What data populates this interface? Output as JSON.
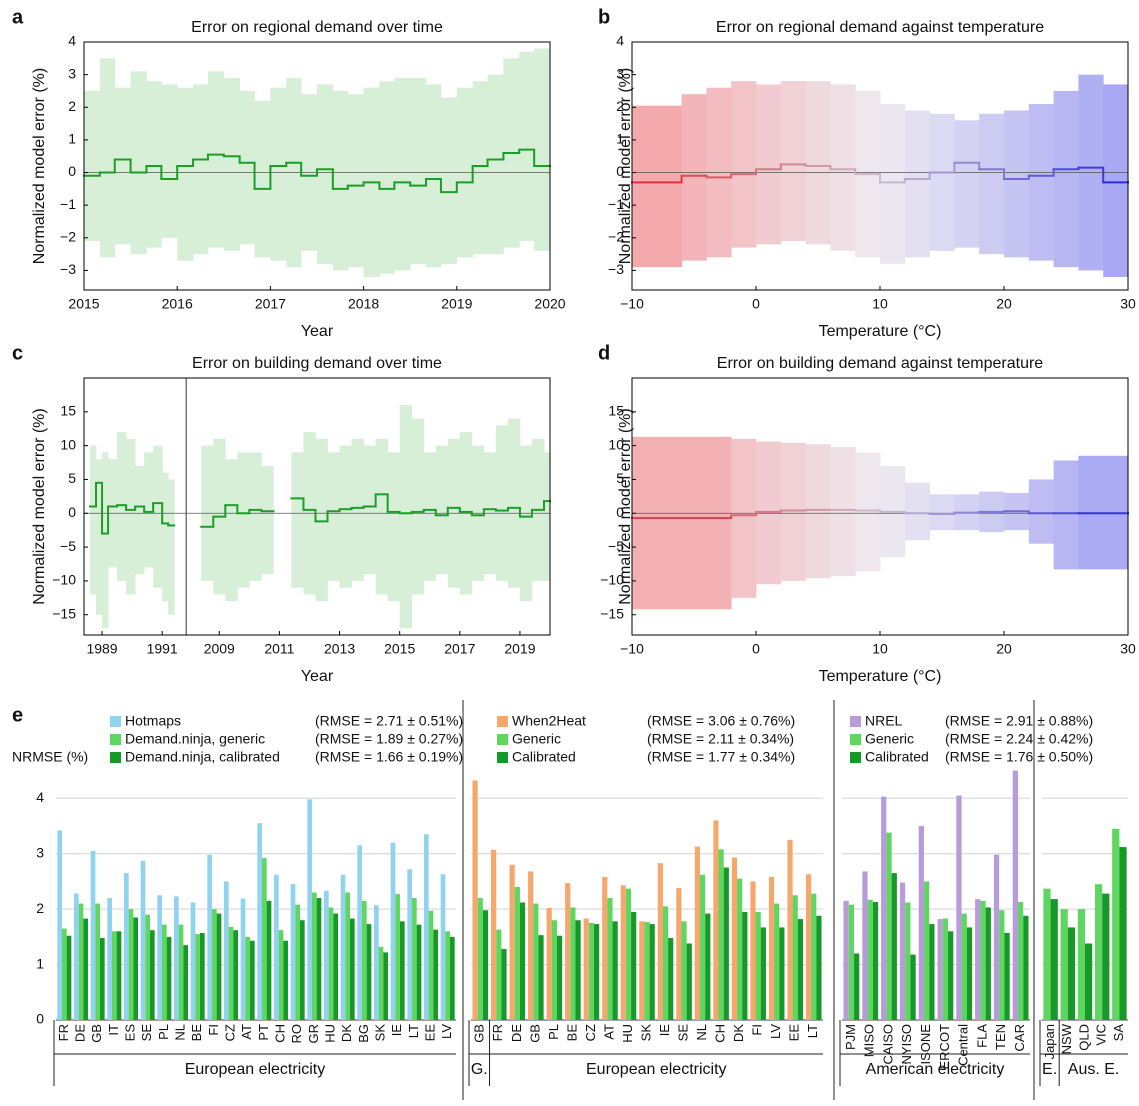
{
  "chart_data": [
    {
      "type": "step-band",
      "panel": "a",
      "title": "Error on regional demand over time",
      "xlabel": "Year",
      "ylabel": "Normalized model error (%)",
      "xlim": [
        2015,
        2020
      ],
      "xticks": [
        2015,
        2016,
        2017,
        2018,
        2019,
        2020
      ],
      "ylim": [
        -3.6,
        4
      ],
      "yticks": [
        {
          "value": -3,
          "label": "−3"
        },
        {
          "value": -2,
          "label": "−2"
        },
        {
          "value": -1,
          "label": "−1"
        },
        0,
        1,
        2,
        3,
        4
      ],
      "zero_line": true,
      "line_color": "#1e9e28",
      "band_color": "#d6efd6",
      "x": [
        2015,
        2015.17,
        2015.33,
        2015.5,
        2015.67,
        2015.83,
        2016,
        2016.17,
        2016.33,
        2016.5,
        2016.67,
        2016.83,
        2017,
        2017.17,
        2017.33,
        2017.5,
        2017.67,
        2017.83,
        2018,
        2018.17,
        2018.33,
        2018.5,
        2018.67,
        2018.83,
        2019,
        2019.17,
        2019.33,
        2019.5,
        2019.67,
        2019.83
      ],
      "line": [
        -0.1,
        0.0,
        0.4,
        0.0,
        0.2,
        -0.2,
        0.2,
        0.4,
        0.55,
        0.5,
        0.3,
        -0.5,
        0.2,
        0.3,
        -0.1,
        0.1,
        -0.5,
        -0.4,
        -0.3,
        -0.5,
        -0.3,
        -0.4,
        -0.2,
        -0.6,
        -0.3,
        0.2,
        0.4,
        0.6,
        0.7,
        0.2
      ],
      "upper": [
        2.5,
        3.5,
        2.6,
        3.1,
        2.8,
        2.7,
        2.6,
        2.7,
        3.1,
        2.9,
        2.5,
        2.2,
        2.6,
        2.9,
        2.4,
        2.7,
        2.5,
        2.4,
        2.6,
        2.8,
        2.9,
        2.9,
        2.7,
        2.3,
        2.6,
        2.8,
        3.0,
        3.5,
        3.7,
        3.8
      ],
      "lower": [
        -2.1,
        -2.6,
        -2.2,
        -2.5,
        -2.3,
        -2.0,
        -2.7,
        -2.5,
        -2.3,
        -2.4,
        -2.2,
        -2.6,
        -2.7,
        -2.9,
        -2.4,
        -2.8,
        -3.0,
        -2.9,
        -3.2,
        -3.1,
        -3.0,
        -2.8,
        -2.9,
        -2.8,
        -2.6,
        -2.5,
        -2.5,
        -2.3,
        -2.1,
        -2.4
      ]
    },
    {
      "type": "step-band",
      "panel": "b",
      "title": "Error on regional demand against temperature",
      "xlabel": "Temperature (°C)",
      "ylabel": "Normalized model error (%)",
      "xlim": [
        -10,
        30
      ],
      "xticks": [
        {
          "value": -10,
          "label": "−10"
        },
        0,
        10,
        20,
        30
      ],
      "ylim": [
        -3.6,
        4
      ],
      "yticks": [
        {
          "value": -3,
          "label": "−3"
        },
        {
          "value": -2,
          "label": "−2"
        },
        {
          "value": -1,
          "label": "−1"
        },
        0,
        1,
        2,
        3,
        4
      ],
      "zero_line": true,
      "line_gradient": [
        "#e0262c",
        "#cbbfd0",
        "#2424dc"
      ],
      "band_gradient": [
        "#f5a3a5",
        "#eeebf1",
        "#a4a4f4"
      ],
      "x": [
        -10,
        -6,
        -4,
        -2,
        0,
        2,
        4,
        6,
        8,
        10,
        12,
        14,
        16,
        18,
        20,
        22,
        24,
        26,
        28
      ],
      "line": [
        -0.3,
        -0.1,
        -0.15,
        -0.05,
        0.1,
        0.25,
        0.2,
        0.1,
        -0.05,
        -0.3,
        -0.2,
        0.0,
        0.3,
        0.1,
        -0.2,
        -0.1,
        0.1,
        0.15,
        -0.3
      ],
      "upper": [
        2.05,
        2.4,
        2.6,
        2.8,
        2.7,
        2.8,
        2.8,
        2.7,
        2.5,
        2.1,
        1.9,
        1.8,
        1.6,
        1.8,
        1.9,
        2.1,
        2.5,
        3.0,
        2.7
      ],
      "lower": [
        -2.9,
        -2.7,
        -2.6,
        -2.3,
        -2.2,
        -2.1,
        -2.2,
        -2.4,
        -2.6,
        -2.8,
        -2.6,
        -2.4,
        -2.3,
        -2.5,
        -2.6,
        -2.7,
        -2.9,
        -3.0,
        -3.2
      ]
    },
    {
      "type": "step-band",
      "panel": "c",
      "title": "Error on building demand over time",
      "xlabel": "Year",
      "ylabel": "Normalized model error (%)",
      "ylim": [
        -18,
        20
      ],
      "yticks": [
        {
          "value": -15,
          "label": "−15"
        },
        {
          "value": -10,
          "label": "−10"
        },
        {
          "value": -5,
          "label": "−5"
        },
        0,
        5,
        10,
        15
      ],
      "zero_line": true,
      "line_color": "#1e9e28",
      "band_color": "#d6efd6",
      "segments": [
        {
          "xlim": [
            1988.4,
            1991.8
          ],
          "xticks": [
            1989,
            1991
          ],
          "x": [
            1988.6,
            1988.8,
            1989.0,
            1989.2,
            1989.5,
            1989.8,
            1990.1,
            1990.4,
            1990.7,
            1991.0,
            1991.2,
            1991.4
          ],
          "line": [
            1.0,
            4.5,
            -3.0,
            1.0,
            1.2,
            0.5,
            1.0,
            0.2,
            1.5,
            -1.5,
            -1.8,
            null
          ],
          "upper": [
            10,
            8,
            9,
            8,
            12,
            11,
            7,
            9,
            10,
            6,
            5,
            null
          ],
          "lower": [
            -12,
            -15,
            -17,
            -8,
            -10,
            -12,
            -9,
            -8,
            -11,
            -13,
            -15,
            null
          ]
        },
        {
          "xlim": [
            2007.9,
            2020
          ],
          "xticks": [
            2009,
            2011,
            2013,
            2015,
            2017,
            2019
          ],
          "x": [
            2008.4,
            2008.8,
            2009.2,
            2009.6,
            2010.0,
            2010.4,
            2010.8,
            2011.4,
            2011.8,
            2012.2,
            2012.6,
            2013.0,
            2013.4,
            2013.8,
            2014.2,
            2014.6,
            2015.0,
            2015.4,
            2015.8,
            2016.2,
            2016.6,
            2017.0,
            2017.4,
            2017.8,
            2018.2,
            2018.6,
            2019.0,
            2019.4,
            2019.8
          ],
          "line": [
            -2.0,
            -0.5,
            1.2,
            0.0,
            0.5,
            0.3,
            null,
            2.2,
            0.5,
            -1.2,
            0.3,
            0.6,
            0.8,
            1.0,
            2.8,
            0.2,
            0.0,
            0.2,
            0.5,
            -0.3,
            0.8,
            0.2,
            -0.3,
            0.6,
            0.4,
            0.8,
            -0.5,
            0.5,
            1.8
          ],
          "upper": [
            10,
            11,
            8,
            9,
            9,
            7,
            null,
            9,
            12,
            11,
            9,
            10,
            11,
            10,
            11,
            9,
            16,
            14,
            9,
            10,
            11,
            12,
            10,
            9,
            13,
            14,
            10,
            11,
            9
          ],
          "lower": [
            -10,
            -12,
            -13,
            -11,
            -10,
            -9,
            null,
            -11,
            -12,
            -13,
            -10,
            -11,
            -10,
            -9,
            -12,
            -13,
            -17,
            -12,
            -10,
            -9,
            -11,
            -12,
            -10,
            -9,
            -10,
            -11,
            -13,
            -10,
            -10
          ]
        }
      ]
    },
    {
      "type": "step-band",
      "panel": "d",
      "title": "Error on building demand against temperature",
      "xlabel": "Temperature (°C)",
      "ylabel": "Normalized model error (%)",
      "xlim": [
        -10,
        30
      ],
      "xticks": [
        {
          "value": -10,
          "label": "−10"
        },
        0,
        10,
        20,
        30
      ],
      "ylim": [
        -18,
        20
      ],
      "yticks": [
        {
          "value": -15,
          "label": "−15"
        },
        {
          "value": -10,
          "label": "−10"
        },
        {
          "value": -5,
          "label": "−5"
        },
        0,
        5,
        10,
        15
      ],
      "zero_line": true,
      "line_gradient": [
        "#e0262c",
        "#cbbfd0",
        "#2424dc"
      ],
      "band_gradient": [
        "#f5a3a5",
        "#eeebf1",
        "#a4a4f4"
      ],
      "x": [
        -10,
        -2,
        0,
        2,
        4,
        6,
        8,
        10,
        12,
        14,
        16,
        18,
        20,
        22,
        24,
        26
      ],
      "line": [
        -0.7,
        -0.3,
        0.2,
        0.4,
        0.5,
        0.5,
        0.4,
        0.2,
        0.0,
        -0.1,
        0.1,
        0.2,
        0.3,
        0.0,
        0.0,
        0.0
      ],
      "upper": [
        11.3,
        11.0,
        10.6,
        10.4,
        10.2,
        9.8,
        9.0,
        7.0,
        4.5,
        2.8,
        2.8,
        3.2,
        3.0,
        5.0,
        7.8,
        8.5
      ],
      "lower": [
        -14.2,
        -12.5,
        -10.5,
        -10.0,
        -9.6,
        -9.3,
        -8.6,
        -6.5,
        -4.0,
        -2.5,
        -2.5,
        -2.8,
        -2.5,
        -4.5,
        -8.3,
        -8.3
      ]
    },
    {
      "type": "grouped-bar",
      "panel": "e",
      "ylabel": "NRMSE (%)",
      "ylim": [
        0,
        4.6
      ],
      "yticks": [
        0,
        1,
        2,
        3,
        4
      ],
      "grid": true,
      "parts": [
        {
          "series": [
            {
              "name": "Hotmaps",
              "color": "#8fd3ef",
              "rmse": "(RMSE = 2.71 ± 0.51%)"
            },
            {
              "name": "Demand.ninja, generic",
              "color": "#5fd65f",
              "rmse": "(RMSE = 1.89 ± 0.27%)"
            },
            {
              "name": "Demand.ninja, calibrated",
              "color": "#17992a",
              "rmse": "(RMSE = 1.66 ± 0.19%)"
            }
          ],
          "groups": [
            {
              "label": "European electricity",
              "categories": [
                "FR",
                "DE",
                "GB",
                "IT",
                "ES",
                "SE",
                "PL",
                "NL",
                "BE",
                "FI",
                "CZ",
                "AT",
                "PT",
                "CH",
                "RO",
                "GR",
                "HU",
                "DK",
                "BG",
                "SK",
                "IE",
                "LT",
                "EE",
                "LV"
              ],
              "values": [
                [
                  3.42,
                  2.28,
                  3.05,
                  2.2,
                  2.65,
                  2.87,
                  2.25,
                  2.23,
                  2.12,
                  2.98,
                  2.5,
                  2.19,
                  3.55,
                  2.62,
                  2.45,
                  3.98,
                  2.33,
                  2.62,
                  3.15,
                  2.07,
                  3.2,
                  2.72,
                  3.35,
                  2.63
                ],
                [
                  1.65,
                  2.1,
                  2.1,
                  1.6,
                  2.0,
                  1.9,
                  1.72,
                  1.72,
                  1.55,
                  2.0,
                  1.68,
                  1.5,
                  2.92,
                  1.62,
                  2.08,
                  2.3,
                  2.03,
                  2.3,
                  2.15,
                  1.32,
                  2.27,
                  2.2,
                  1.97,
                  1.6
                ],
                [
                  1.52,
                  1.83,
                  1.48,
                  1.6,
                  1.85,
                  1.62,
                  1.5,
                  1.35,
                  1.57,
                  1.92,
                  1.62,
                  1.43,
                  2.15,
                  1.43,
                  1.8,
                  2.2,
                  1.92,
                  1.83,
                  1.73,
                  1.22,
                  1.78,
                  1.72,
                  1.63,
                  1.5
                ]
              ]
            }
          ]
        },
        {
          "series": [
            {
              "name": "When2Heat",
              "color": "#f6a76c",
              "rmse": "(RMSE = 3.06 ± 0.76%)"
            },
            {
              "name": "Generic",
              "color": "#5fd65f",
              "rmse": "(RMSE = 2.11 ± 0.34%)"
            },
            {
              "name": "Calibrated",
              "color": "#17992a",
              "rmse": "(RMSE = 1.77 ± 0.34%)"
            }
          ],
          "groups": [
            {
              "label": "G.",
              "categories": [
                "GB"
              ],
              "values": [
                [
                  4.32
                ],
                [
                  2.2
                ],
                [
                  1.98
                ]
              ]
            },
            {
              "label": "European electricity",
              "categories": [
                "FR",
                "DE",
                "GB",
                "PL",
                "BE",
                "CZ",
                "AT",
                "HU",
                "SK",
                "IE",
                "SE",
                "NL",
                "CH",
                "DK",
                "FI",
                "LV",
                "EE",
                "LT"
              ],
              "values": [
                [
                  3.07,
                  2.8,
                  2.68,
                  2.02,
                  2.47,
                  1.83,
                  2.58,
                  2.43,
                  1.78,
                  2.83,
                  2.38,
                  3.13,
                  3.6,
                  2.93,
                  2.5,
                  2.58,
                  3.25,
                  2.63
                ],
                [
                  1.63,
                  2.4,
                  2.1,
                  1.8,
                  2.03,
                  1.75,
                  2.2,
                  2.37,
                  1.77,
                  2.05,
                  1.78,
                  2.62,
                  3.08,
                  2.55,
                  1.95,
                  2.1,
                  2.25,
                  2.28
                ],
                [
                  1.28,
                  2.12,
                  1.53,
                  1.52,
                  1.8,
                  1.73,
                  1.78,
                  1.95,
                  1.73,
                  1.48,
                  1.38,
                  1.92,
                  2.75,
                  1.95,
                  1.67,
                  1.67,
                  1.82,
                  1.88
                ]
              ]
            }
          ]
        },
        {
          "series": [
            {
              "name": "NREL",
              "color": "#b89cda",
              "rmse": "(RMSE = 2.91 ± 0.88%)"
            },
            {
              "name": "Generic",
              "color": "#5fd65f",
              "rmse": "(RMSE = 2.24 ± 0.42%)"
            },
            {
              "name": "Calibrated",
              "color": "#17992a",
              "rmse": "(RMSE = 1.76 ± 0.50%)"
            }
          ],
          "groups": [
            {
              "label": "American electricity",
              "categories": [
                "PJM",
                "MISO",
                "CAISO",
                "NYISO",
                "ISONE",
                "ERCOT",
                "Central",
                "FLA",
                "TEN",
                "CAR"
              ],
              "values": [
                [
                  2.15,
                  2.68,
                  4.03,
                  2.48,
                  3.5,
                  1.82,
                  4.05,
                  2.18,
                  2.98,
                  4.5
                ],
                [
                  2.08,
                  2.17,
                  3.38,
                  2.12,
                  2.5,
                  1.83,
                  1.92,
                  2.15,
                  1.98,
                  2.13
                ],
                [
                  1.2,
                  2.13,
                  2.65,
                  1.18,
                  1.73,
                  1.6,
                  1.67,
                  2.03,
                  1.57,
                  1.88
                ]
              ]
            }
          ]
        },
        {
          "series": [
            {
              "color": "#5fd65f"
            },
            {
              "color": "#17992a"
            }
          ],
          "groups": [
            {
              "label": "E.",
              "categories": [
                "Japan"
              ],
              "values": [
                [
                  2.37
                ],
                [
                  2.18
                ]
              ]
            },
            {
              "label": "Aus. E.",
              "categories": [
                "NSW",
                "QLD",
                "VIC",
                "SA"
              ],
              "values": [
                [
                  2.0,
                  2.0,
                  2.45,
                  3.45
                ],
                [
                  1.67,
                  1.38,
                  2.28,
                  3.12
                ]
              ]
            }
          ]
        }
      ]
    }
  ]
}
